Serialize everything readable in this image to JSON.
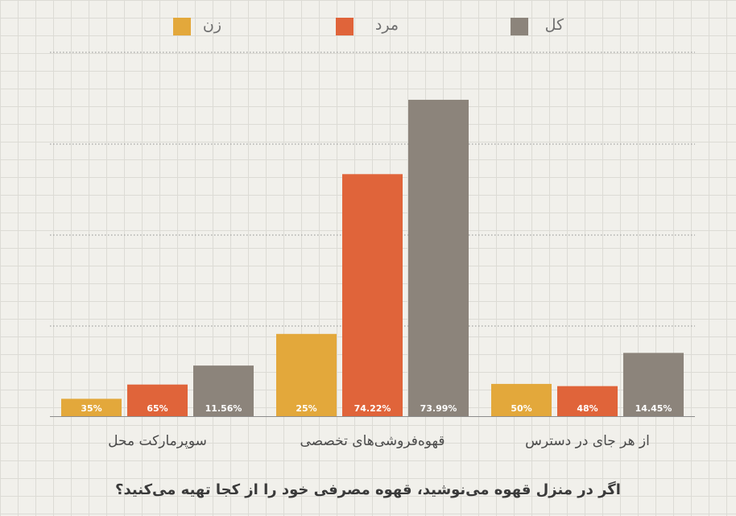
{
  "chart_data": {
    "type": "bar",
    "categories": [
      "سوپرمارکت محل",
      "قهوه‌فروشی‌های تخصصی",
      "از هر جای در دسترس"
    ],
    "series": [
      {
        "name": "زن",
        "color": "#e3a83b",
        "values": [
          35,
          25,
          50
        ],
        "labels": [
          "35%",
          "25%",
          "50%"
        ],
        "bar_values": [
          5.5,
          26.0,
          10.2
        ]
      },
      {
        "name": "مرد",
        "color": "#e0643a",
        "values": [
          65,
          74.22,
          48
        ],
        "labels": [
          "65%",
          "74.22%",
          "48%"
        ],
        "bar_values": [
          10.0,
          76.5,
          9.5
        ]
      },
      {
        "name": "کل",
        "color": "#8c847b",
        "values": [
          11.56,
          73.99,
          14.45
        ],
        "labels": [
          "11.56%",
          "73.99%",
          "14.45%"
        ],
        "bar_values": [
          16.0,
          100.0,
          20.0
        ]
      }
    ],
    "ylim": [
      0,
      115
    ],
    "grid": true,
    "legend": "top"
  },
  "footer": {
    "question": "اگر در منزل قهوه می‌نوشید، قهوه مصرفی خود را از کجا تهیه می‌کنید؟"
  }
}
